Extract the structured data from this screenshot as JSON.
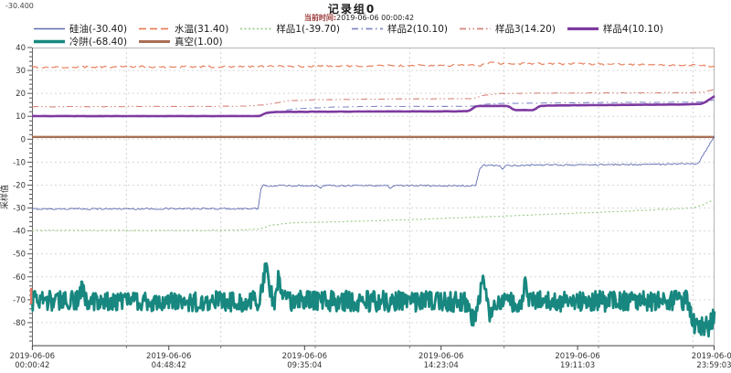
{
  "header": {
    "readout": "-30.400",
    "title": "记录组0",
    "subtitle_label": "当前时间:",
    "subtitle_value": "2019-06-06  00:00:42"
  },
  "chart_data": {
    "type": "line",
    "title": "记录组0",
    "ylabel": "采样值",
    "ylim": [
      -90,
      40
    ],
    "y_major_ticks": [
      40,
      30,
      20,
      10,
      0,
      -10,
      -20,
      -30,
      -40,
      -50,
      -60,
      -70,
      -80
    ],
    "y_minor_step": 2,
    "grid": "dashed",
    "x_span_hours": 24,
    "x_labels": [
      {
        "date": "2019-06-06",
        "time": "00:00:42",
        "t": 0.0117
      },
      {
        "date": "2019-06-06",
        "time": "04:48:42",
        "t": 4.8117
      },
      {
        "date": "2019-06-06",
        "time": "09:35:04",
        "t": 9.5844
      },
      {
        "date": "2019-06-06",
        "time": "14:23:04",
        "t": 14.3844
      },
      {
        "date": "2019-06-06",
        "time": "19:11:03",
        "t": 19.1842
      },
      {
        "date": "2019-06-06",
        "time": "23:59:03",
        "t": 23.9842
      }
    ],
    "grid_times": [
      3.32,
      6.64,
      9.96,
      13.28,
      16.6,
      19.92,
      23.24
    ],
    "legend_rows": [
      [
        0,
        1,
        2,
        3,
        4,
        5
      ],
      [
        6,
        7
      ]
    ],
    "draw_order": [
      6,
      7,
      1,
      0,
      2,
      4,
      3,
      5
    ],
    "cursor": {
      "t": 0.0117,
      "value": -68.4,
      "color": "#e0796a"
    },
    "series": [
      {
        "name": "silicone-oil",
        "label": "硅油(-30.40)",
        "current": -30.4,
        "color": "#5f6cb0",
        "width": 0.9,
        "dash": "",
        "noise": 0.35,
        "step": 0.05,
        "points": [
          [
            0,
            -30.4
          ],
          [
            7.95,
            -30.3
          ],
          [
            8.05,
            -22
          ],
          [
            8.15,
            -19.8
          ],
          [
            8.3,
            -20.3
          ],
          [
            10.05,
            -20.2
          ],
          [
            10.15,
            -21.6
          ],
          [
            10.25,
            -20.2
          ],
          [
            12.5,
            -20.2
          ],
          [
            12.6,
            -21.5
          ],
          [
            12.7,
            -20.2
          ],
          [
            15.6,
            -20.3
          ],
          [
            15.75,
            -13
          ],
          [
            15.85,
            -11.2
          ],
          [
            16.1,
            -11.6
          ],
          [
            16.45,
            -11.4
          ],
          [
            16.55,
            -13.2
          ],
          [
            16.65,
            -11.5
          ],
          [
            17.5,
            -11.3
          ],
          [
            19,
            -11.2
          ],
          [
            21,
            -11.0
          ],
          [
            23.2,
            -10.8
          ],
          [
            23.4,
            -10.9
          ],
          [
            24,
            1.5
          ]
        ]
      },
      {
        "name": "water-temp",
        "label": "水温(31.40)",
        "current": 31.4,
        "color": "#e8825f",
        "width": 1.2,
        "dash": "8 4",
        "noise": 0.45,
        "step": 0.06,
        "points": [
          [
            0,
            31.4
          ],
          [
            4,
            31.6
          ],
          [
            8,
            31.7
          ],
          [
            12,
            32.0
          ],
          [
            14,
            32.2
          ],
          [
            15.8,
            32.3
          ],
          [
            16.2,
            33.8
          ],
          [
            16.6,
            32.8
          ],
          [
            17.5,
            33.0
          ],
          [
            19,
            32.8
          ],
          [
            21,
            32.7
          ],
          [
            22.5,
            32.4
          ],
          [
            23.5,
            32.1
          ],
          [
            24,
            31.8
          ]
        ]
      },
      {
        "name": "sample1",
        "label": "样品1(-39.70)",
        "current": -39.7,
        "color": "#9ecf8e",
        "width": 1.2,
        "dash": "2 2.5",
        "noise": 0.12,
        "step": 0.1,
        "points": [
          [
            0,
            -39.7
          ],
          [
            6,
            -39.8
          ],
          [
            7.6,
            -39.5
          ],
          [
            8.0,
            -39.2
          ],
          [
            8.4,
            -37.5
          ],
          [
            9.0,
            -36.6
          ],
          [
            10,
            -36.2
          ],
          [
            12,
            -35.6
          ],
          [
            14,
            -34.8
          ],
          [
            16,
            -33.8
          ],
          [
            18,
            -32.8
          ],
          [
            20,
            -31.8
          ],
          [
            21.5,
            -31.0
          ],
          [
            22.8,
            -30.3
          ],
          [
            23.3,
            -29.8
          ],
          [
            23.6,
            -28.5
          ],
          [
            24,
            -26.3
          ]
        ]
      },
      {
        "name": "sample2",
        "label": "样品2(10.10)",
        "current": 10.1,
        "color": "#8089c9",
        "width": 1.1,
        "dash": "7 3.5 1.5 3.5",
        "noise": 0.08,
        "step": 0.12,
        "points": [
          [
            0,
            10.1
          ],
          [
            7.9,
            10.15
          ],
          [
            8.3,
            11.2
          ],
          [
            9.2,
            13.2
          ],
          [
            10.5,
            14.0
          ],
          [
            12,
            14.3
          ],
          [
            15.5,
            14.4
          ],
          [
            16.0,
            15.3
          ],
          [
            16.5,
            15.6
          ],
          [
            18,
            15.8
          ],
          [
            20,
            16.0
          ],
          [
            22,
            16.1
          ],
          [
            23.3,
            16.2
          ],
          [
            23.6,
            16.4
          ],
          [
            24,
            17.2
          ]
        ]
      },
      {
        "name": "sample3",
        "label": "样品3(14.20)",
        "current": 14.2,
        "color": "#d6857d",
        "width": 1.1,
        "dash": "7 3 1.5 3 1.5 3",
        "noise": 0.1,
        "step": 0.12,
        "points": [
          [
            0,
            14.2
          ],
          [
            4,
            14.3
          ],
          [
            7.5,
            14.4
          ],
          [
            8.2,
            15.0
          ],
          [
            9.0,
            16.8
          ],
          [
            10,
            17.2
          ],
          [
            12,
            17.5
          ],
          [
            15.5,
            17.7
          ],
          [
            15.9,
            19.2
          ],
          [
            16.4,
            19.9
          ],
          [
            17.5,
            20.1
          ],
          [
            20,
            20.2
          ],
          [
            22,
            20.3
          ],
          [
            23.2,
            20.3
          ],
          [
            23.6,
            20.6
          ],
          [
            24,
            21.8
          ]
        ]
      },
      {
        "name": "sample4",
        "label": "样品4(10.10)",
        "current": 10.1,
        "color": "#7d3aa0",
        "width": 2.6,
        "dash": "",
        "noise": 0.05,
        "step": 0.1,
        "points": [
          [
            0,
            10.1
          ],
          [
            8.0,
            10.1
          ],
          [
            8.25,
            11.6
          ],
          [
            8.6,
            11.9
          ],
          [
            10,
            12.0
          ],
          [
            12,
            12.1
          ],
          [
            15.35,
            12.2
          ],
          [
            15.6,
            14.3
          ],
          [
            15.75,
            14.5
          ],
          [
            16.75,
            14.5
          ],
          [
            16.95,
            12.7
          ],
          [
            17.65,
            12.7
          ],
          [
            17.85,
            14.5
          ],
          [
            18.2,
            14.7
          ],
          [
            19,
            14.8
          ],
          [
            20,
            14.9
          ],
          [
            21,
            15.0
          ],
          [
            22,
            15.1
          ],
          [
            23.0,
            15.2
          ],
          [
            23.5,
            15.4
          ],
          [
            23.65,
            16.0
          ],
          [
            24,
            18.8
          ]
        ]
      },
      {
        "name": "cold-trap",
        "label": "冷阱(-68.40)",
        "current": -68.4,
        "color": "#17877f",
        "width": 2.8,
        "dash": "",
        "noise": 4.5,
        "step": 0.026,
        "points": [
          [
            0,
            -70.5
          ],
          [
            1.6,
            -70.5
          ],
          [
            1.75,
            -63.5
          ],
          [
            1.9,
            -70.5
          ],
          [
            7.9,
            -70.6
          ],
          [
            8.05,
            -68
          ],
          [
            8.2,
            -55.5
          ],
          [
            8.45,
            -70
          ],
          [
            8.55,
            -70
          ],
          [
            8.65,
            -60.5
          ],
          [
            8.8,
            -70.5
          ],
          [
            15.3,
            -70.8
          ],
          [
            15.45,
            -78
          ],
          [
            15.6,
            -79.5
          ],
          [
            15.72,
            -70
          ],
          [
            15.88,
            -58.5
          ],
          [
            16.0,
            -67
          ],
          [
            16.12,
            -77.5
          ],
          [
            16.3,
            -70.8
          ],
          [
            17.25,
            -70.8
          ],
          [
            17.35,
            -60.5
          ],
          [
            17.5,
            -70.8
          ],
          [
            23.05,
            -70.5
          ],
          [
            23.25,
            -80.5
          ],
          [
            23.45,
            -82
          ],
          [
            23.8,
            -81.5
          ],
          [
            23.92,
            -78.5
          ],
          [
            24,
            -77.5
          ]
        ]
      },
      {
        "name": "vacuum",
        "label": "真空(1.00)",
        "current": 1.0,
        "color": "#a86f55",
        "width": 2.4,
        "dash": "",
        "noise": 0,
        "step": 1,
        "points": [
          [
            0,
            1.0
          ],
          [
            24,
            1.0
          ]
        ]
      }
    ]
  }
}
